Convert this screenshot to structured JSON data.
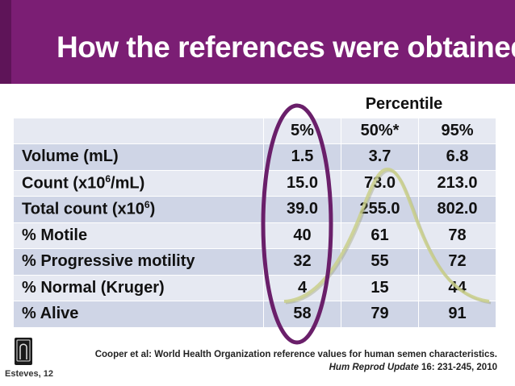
{
  "slide": {
    "title": "How the references were obtained"
  },
  "table": {
    "percentile_header": "Percentile",
    "columns": [
      "5%",
      "50%*",
      "95%"
    ],
    "rows": [
      {
        "label_parts": [
          "Volume (mL)"
        ],
        "values": [
          "1.5",
          "3.7",
          "6.8"
        ]
      },
      {
        "label_parts": [
          "Count (x10",
          "6",
          "/mL)"
        ],
        "values": [
          "15.0",
          "73.0",
          "213.0"
        ]
      },
      {
        "label_parts": [
          "Total count (x10",
          "6",
          ")"
        ],
        "values": [
          "39.0",
          "255.0",
          "802.0"
        ]
      },
      {
        "label_parts": [
          "% Motile"
        ],
        "values": [
          "40",
          "61",
          "78"
        ]
      },
      {
        "label_parts": [
          "% Progressive motility"
        ],
        "values": [
          "32",
          "55",
          "72"
        ]
      },
      {
        "label_parts": [
          "% Normal (Kruger)"
        ],
        "values": [
          "4",
          "15",
          "44"
        ]
      },
      {
        "label_parts": [
          "% Alive"
        ],
        "values": [
          "58",
          "79",
          "91"
        ]
      }
    ]
  },
  "citation": {
    "line1": "Cooper et al: World Health Organization reference values for human semen characteristics.",
    "journal": "Hum Reprod Update",
    "volume": "16: 231-245, 2010"
  },
  "author_tag": "Esteves, 12",
  "colors": {
    "header": "#7b1e74",
    "ellipse": "#6a1f6a",
    "curve": "#c9cf8a"
  }
}
